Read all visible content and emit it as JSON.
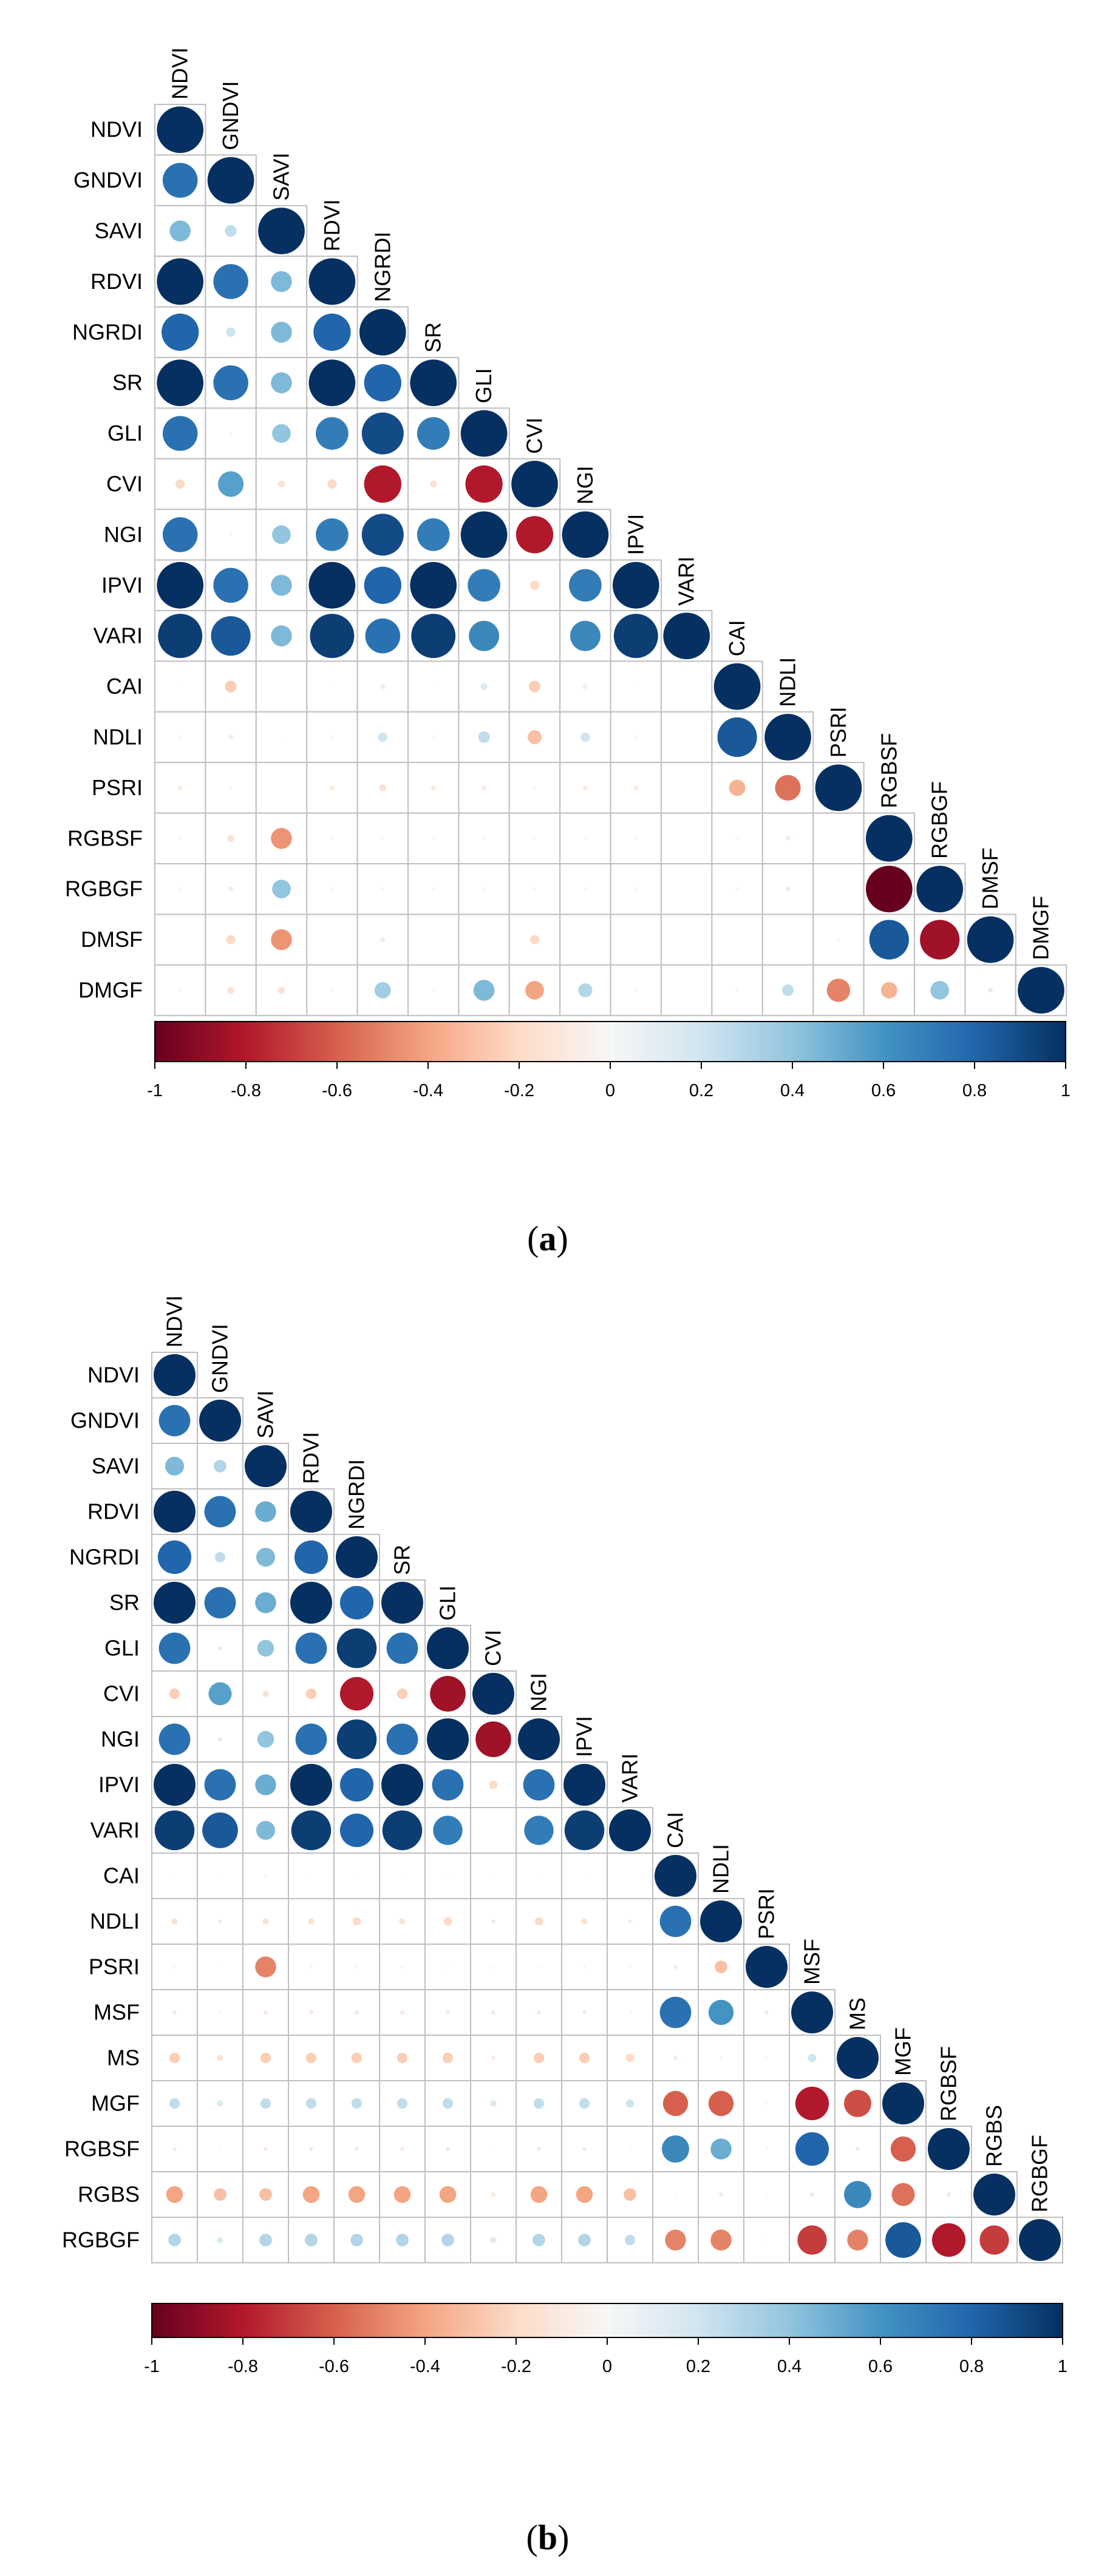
{
  "chart_data": [
    {
      "type": "heatmap",
      "subtype": "correlation-circles-lower-triangle",
      "panel_label": "a",
      "variables": [
        "NDVI",
        "GNDVI",
        "SAVI",
        "RDVI",
        "NGRDI",
        "SR",
        "GLI",
        "CVI",
        "NGI",
        "IPVI",
        "VARI",
        "CAI",
        "NDLI",
        "PSRI",
        "RGBSF",
        "RGBGF",
        "DMSF",
        "DMGF"
      ],
      "matrix": [
        [
          1
        ],
        [
          0.75,
          1
        ],
        [
          0.45,
          0.25,
          1
        ],
        [
          1.0,
          0.75,
          0.45,
          1
        ],
        [
          0.8,
          0.2,
          0.45,
          0.8,
          1
        ],
        [
          1.0,
          0.75,
          0.45,
          1.0,
          0.8,
          1
        ],
        [
          0.75,
          0.05,
          0.4,
          0.7,
          0.9,
          0.7,
          1
        ],
        [
          -0.2,
          0.55,
          -0.15,
          -0.2,
          -0.8,
          -0.15,
          -0.8,
          1
        ],
        [
          0.75,
          0.05,
          0.4,
          0.7,
          0.9,
          0.7,
          1.0,
          -0.8,
          1
        ],
        [
          1.0,
          0.75,
          0.45,
          1.0,
          0.8,
          1.0,
          0.7,
          -0.2,
          0.7,
          1
        ],
        [
          0.95,
          0.85,
          0.45,
          0.95,
          0.75,
          0.95,
          0.65,
          0.0,
          0.65,
          0.95,
          1
        ],
        [
          0.03,
          -0.25,
          0.0,
          0.03,
          0.1,
          0.02,
          0.15,
          -0.25,
          0.1,
          0.03,
          0.0,
          1
        ],
        [
          0.05,
          -0.1,
          0.02,
          0.05,
          0.2,
          0.05,
          0.25,
          -0.3,
          0.2,
          0.05,
          0.0,
          0.85,
          1
        ],
        [
          -0.1,
          -0.05,
          0.0,
          -0.1,
          -0.15,
          -0.1,
          -0.1,
          -0.05,
          -0.1,
          -0.1,
          0.0,
          -0.35,
          -0.55,
          1
        ],
        [
          -0.05,
          -0.15,
          -0.45,
          -0.05,
          -0.05,
          -0.05,
          -0.05,
          -0.05,
          -0.05,
          -0.05,
          0.0,
          -0.05,
          -0.1,
          0.0,
          1
        ],
        [
          0.05,
          0.1,
          0.4,
          0.05,
          0.05,
          0.05,
          0.05,
          0.05,
          0.05,
          0.05,
          0.0,
          0.05,
          0.1,
          0.0,
          -1.0,
          1
        ],
        [
          0.0,
          -0.2,
          -0.45,
          0.0,
          0.1,
          0.0,
          0.0,
          -0.2,
          0.0,
          0.0,
          0.0,
          0.0,
          0.0,
          -0.05,
          0.85,
          -0.85,
          1
        ],
        [
          0.05,
          -0.15,
          -0.15,
          0.05,
          0.35,
          0.05,
          0.45,
          -0.4,
          0.3,
          0.05,
          0.0,
          0.05,
          0.25,
          -0.5,
          -0.35,
          0.4,
          0.1,
          1
        ]
      ],
      "colorbar": {
        "min": -1,
        "max": 1,
        "ticks": [
          "-1",
          "-0.8",
          "-0.6",
          "-0.4",
          "-0.2",
          "0",
          "0.2",
          "0.4",
          "0.6",
          "0.8",
          "1"
        ]
      },
      "colors": {
        "neg": "#67001f",
        "mid": "#f7f7f7",
        "pos": "#053061"
      }
    },
    {
      "type": "heatmap",
      "subtype": "correlation-circles-lower-triangle",
      "panel_label": "b",
      "variables": [
        "NDVI",
        "GNDVI",
        "SAVI",
        "RDVI",
        "NGRDI",
        "SR",
        "GLI",
        "CVI",
        "NGI",
        "IPVI",
        "VARI",
        "CAI",
        "NDLI",
        "PSRI",
        "MSF",
        "MS",
        "MGF",
        "RGBSF",
        "RGBS",
        "RGBGF"
      ],
      "matrix": [
        [
          1
        ],
        [
          0.75,
          1
        ],
        [
          0.45,
          0.3,
          1
        ],
        [
          1.0,
          0.75,
          0.5,
          1
        ],
        [
          0.8,
          0.25,
          0.45,
          0.8,
          1
        ],
        [
          1.0,
          0.75,
          0.5,
          1.0,
          0.8,
          1
        ],
        [
          0.75,
          0.1,
          0.4,
          0.75,
          0.95,
          0.75,
          1
        ],
        [
          -0.25,
          0.55,
          -0.15,
          -0.25,
          -0.8,
          -0.25,
          -0.85,
          1
        ],
        [
          0.75,
          0.1,
          0.4,
          0.75,
          0.95,
          0.75,
          1.0,
          -0.85,
          1
        ],
        [
          1.0,
          0.75,
          0.5,
          1.0,
          0.8,
          1.0,
          0.75,
          -0.2,
          0.75,
          1
        ],
        [
          0.95,
          0.85,
          0.45,
          0.95,
          0.8,
          0.95,
          0.7,
          0.0,
          0.7,
          0.95,
          1
        ],
        [
          0.02,
          0.02,
          0.05,
          0.02,
          0.02,
          0.02,
          0.02,
          0.02,
          0.02,
          0.02,
          0.0,
          1
        ],
        [
          -0.15,
          -0.1,
          -0.15,
          -0.15,
          -0.2,
          -0.15,
          -0.2,
          0.1,
          -0.2,
          -0.15,
          -0.1,
          0.75,
          1
        ],
        [
          -0.05,
          -0.03,
          -0.5,
          -0.05,
          -0.05,
          -0.05,
          -0.05,
          -0.05,
          -0.05,
          -0.05,
          -0.05,
          -0.1,
          -0.3,
          1
        ],
        [
          -0.1,
          -0.05,
          -0.1,
          -0.1,
          -0.1,
          -0.1,
          -0.1,
          0.1,
          -0.1,
          -0.1,
          -0.05,
          0.75,
          0.6,
          0.1,
          1
        ],
        [
          -0.25,
          -0.15,
          -0.25,
          -0.25,
          -0.25,
          -0.25,
          -0.25,
          -0.1,
          -0.25,
          -0.25,
          -0.2,
          -0.1,
          0.05,
          -0.05,
          0.2,
          1
        ],
        [
          0.25,
          0.15,
          0.25,
          0.25,
          0.25,
          0.25,
          0.25,
          0.15,
          0.25,
          0.25,
          0.2,
          -0.6,
          -0.6,
          0.05,
          -0.8,
          -0.65,
          1
        ],
        [
          -0.1,
          -0.05,
          -0.1,
          -0.1,
          -0.1,
          -0.1,
          -0.1,
          0.05,
          -0.1,
          -0.1,
          -0.05,
          0.65,
          0.5,
          0.05,
          0.8,
          0.1,
          -0.6,
          1
        ],
        [
          -0.4,
          -0.3,
          -0.3,
          -0.4,
          -0.4,
          -0.4,
          -0.4,
          -0.1,
          -0.4,
          -0.4,
          -0.3,
          0.05,
          0.1,
          -0.05,
          0.1,
          0.65,
          -0.55,
          0.1,
          1
        ],
        [
          0.3,
          0.15,
          0.3,
          0.3,
          0.3,
          0.3,
          0.3,
          0.15,
          0.3,
          0.3,
          0.25,
          -0.5,
          -0.5,
          0.05,
          -0.7,
          -0.5,
          0.85,
          -0.8,
          -0.7,
          1
        ]
      ],
      "colorbar": {
        "min": -1,
        "max": 1,
        "ticks": [
          "-1",
          "-0.8",
          "-0.6",
          "-0.4",
          "-0.2",
          "0",
          "0.2",
          "0.4",
          "0.6",
          "0.8",
          "1"
        ]
      },
      "colors": {
        "neg": "#67001f",
        "mid": "#f7f7f7",
        "pos": "#053061"
      }
    }
  ]
}
